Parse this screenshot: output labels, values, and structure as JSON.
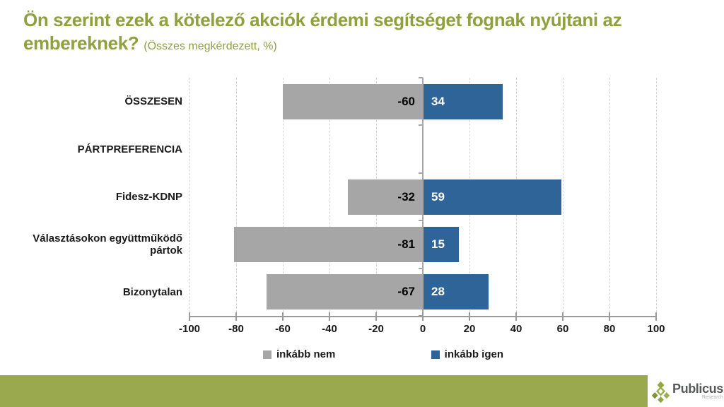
{
  "title": {
    "line1": "Ön szerint ezek a kötelező akciók érdemi segítséget fognak nyújtani az",
    "line2": "embereknek?",
    "suffix": "(Összes megkérdezett, %)",
    "color": "#90A03E"
  },
  "chart_data": {
    "type": "bar",
    "orientation": "horizontal_diverging",
    "categories": [
      "ÖSSZESEN",
      "PÁRTPREFERENCIA",
      "Fidesz-KDNP",
      "Választásokon együttműködő pártok",
      "Bizonytalan"
    ],
    "series": [
      {
        "name": "inkább nem",
        "color": "#A6A6A6",
        "label_color": "#000000",
        "values": [
          -60,
          null,
          -32,
          -81,
          -67
        ]
      },
      {
        "name": "inkább igen",
        "color": "#2F6499",
        "label_color": "#FFFFFF",
        "values": [
          34,
          null,
          59,
          15,
          28
        ]
      }
    ],
    "xlim": [
      -100,
      100
    ],
    "x_ticks": [
      -100,
      -80,
      -60,
      -40,
      -20,
      0,
      20,
      40,
      60,
      80,
      100
    ],
    "grid": "vertical-dashed",
    "legend_position": "bottom"
  },
  "footer": {
    "brand": "Publicus",
    "brand_sub": "Research",
    "bar_color": "#9AA84E",
    "logo_icon": "diamond-cluster-icon"
  }
}
